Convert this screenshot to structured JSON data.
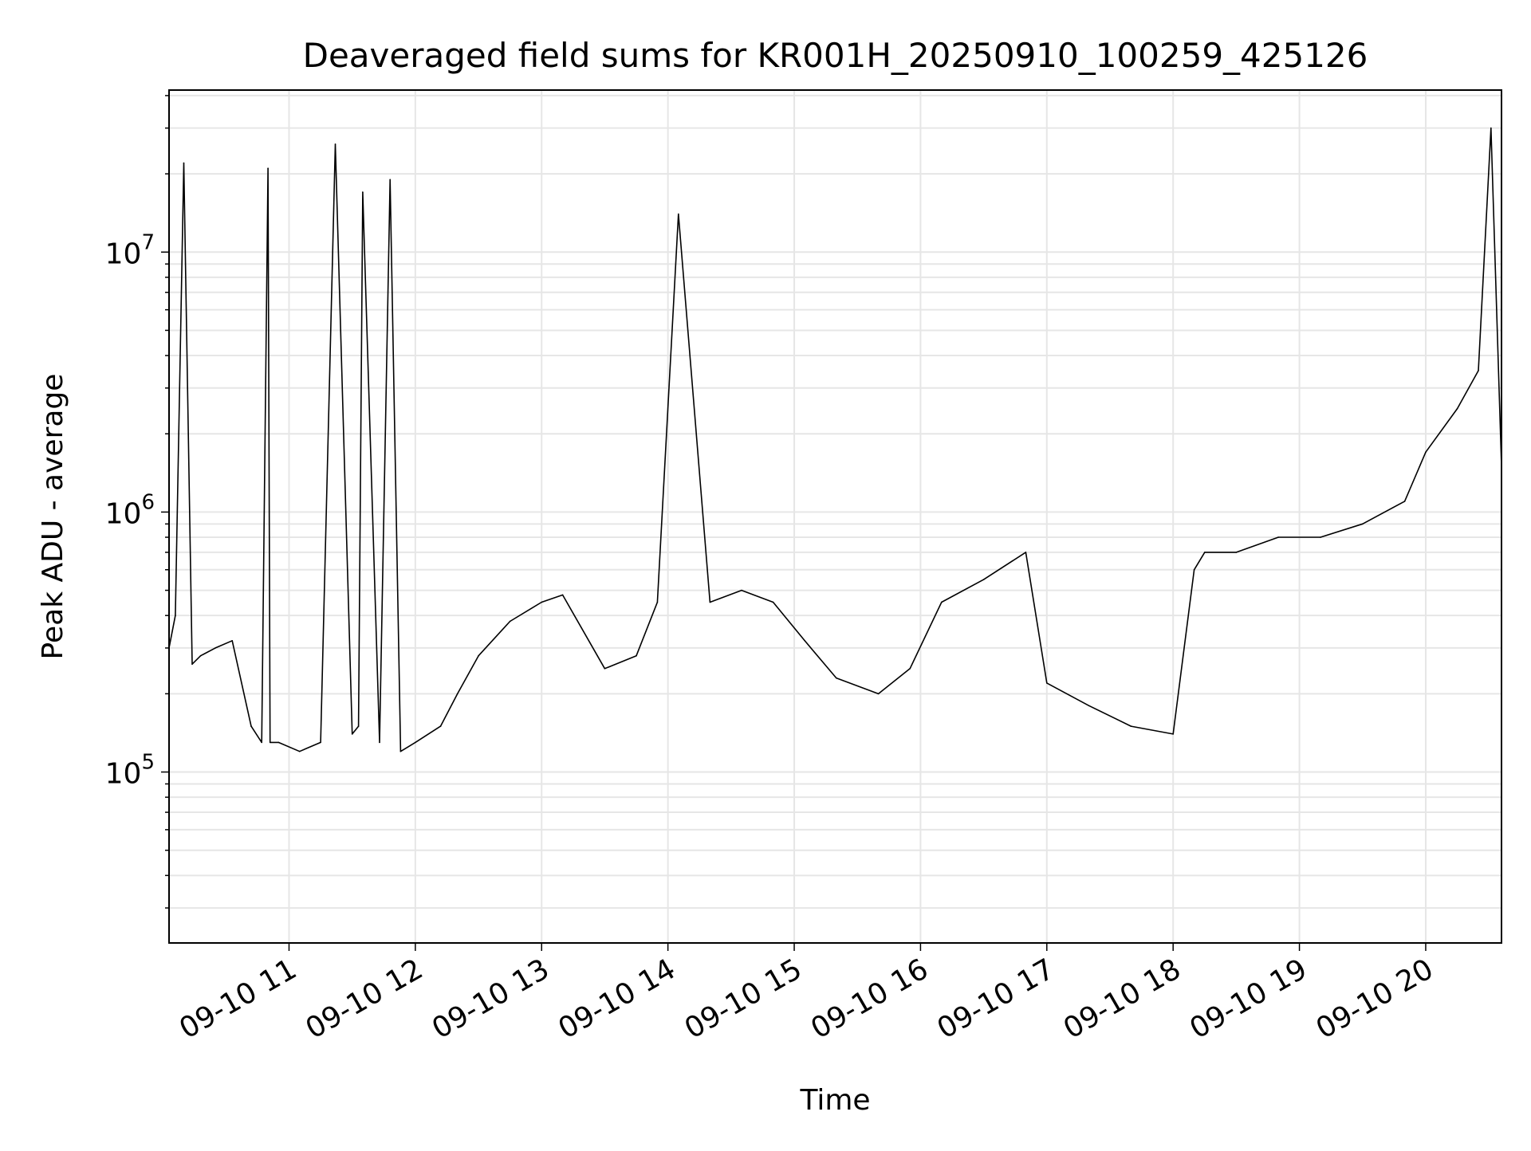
{
  "chart_data": {
    "type": "line",
    "title": "Deaveraged field sums for KR001H_20250910_100259_425126",
    "xlabel": "Time",
    "ylabel": "Peak ADU - average",
    "xlim": [
      "2025-09-10 10:03",
      "2025-09-10 20:36"
    ],
    "ylim": [
      22000,
      42000000
    ],
    "yscale": "log",
    "grid": true,
    "line_color": "#000000",
    "x_ticks": [
      "09-10 11",
      "09-10 12",
      "09-10 13",
      "09-10 14",
      "09-10 15",
      "09-10 16",
      "09-10 17",
      "09-10 18",
      "09-10 19",
      "09-10 20"
    ],
    "y_ticks": [
      {
        "value": 100000,
        "base": "10",
        "exp": "5"
      },
      {
        "value": 1000000,
        "base": "10",
        "exp": "6"
      },
      {
        "value": 10000000,
        "base": "10",
        "exp": "7"
      }
    ],
    "series": [
      {
        "values_note_omitted": false,
        "x": [
          "2025-09-10 10:03",
          "2025-09-10 10:06",
          "2025-09-10 10:10",
          "2025-09-10 10:14",
          "2025-09-10 10:18",
          "2025-09-10 10:25",
          "2025-09-10 10:33",
          "2025-09-10 10:42",
          "2025-09-10 10:47",
          "2025-09-10 10:50",
          "2025-09-10 10:51",
          "2025-09-10 10:55",
          "2025-09-10 11:05",
          "2025-09-10 11:15",
          "2025-09-10 11:22",
          "2025-09-10 11:30",
          "2025-09-10 11:33",
          "2025-09-10 11:35",
          "2025-09-10 11:43",
          "2025-09-10 11:48",
          "2025-09-10 11:53",
          "2025-09-10 12:00",
          "2025-09-10 12:12",
          "2025-09-10 12:20",
          "2025-09-10 12:30",
          "2025-09-10 12:45",
          "2025-09-10 13:00",
          "2025-09-10 13:10",
          "2025-09-10 13:30",
          "2025-09-10 13:45",
          "2025-09-10 13:55",
          "2025-09-10 14:05",
          "2025-09-10 14:20",
          "2025-09-10 14:35",
          "2025-09-10 14:50",
          "2025-09-10 15:05",
          "2025-09-10 15:20",
          "2025-09-10 15:40",
          "2025-09-10 15:55",
          "2025-09-10 16:10",
          "2025-09-10 16:30",
          "2025-09-10 16:50",
          "2025-09-10 17:00",
          "2025-09-10 17:20",
          "2025-09-10 17:40",
          "2025-09-10 18:00",
          "2025-09-10 18:10",
          "2025-09-10 18:15",
          "2025-09-10 18:30",
          "2025-09-10 18:50",
          "2025-09-10 19:10",
          "2025-09-10 19:30",
          "2025-09-10 19:50",
          "2025-09-10 20:00",
          "2025-09-10 20:15",
          "2025-09-10 20:25",
          "2025-09-10 20:31",
          "2025-09-10 20:36"
        ],
        "y": [
          300000,
          400000,
          22000000,
          260000,
          280000,
          300000,
          320000,
          150000,
          130000,
          21000000,
          130000,
          130000,
          120000,
          130000,
          26000000,
          140000,
          150000,
          17000000,
          130000,
          19000000,
          120000,
          130000,
          150000,
          200000,
          280000,
          380000,
          450000,
          480000,
          250000,
          280000,
          450000,
          14000000,
          450000,
          500000,
          450000,
          320000,
          230000,
          200000,
          250000,
          450000,
          550000,
          700000,
          220000,
          180000,
          150000,
          140000,
          600000,
          700000,
          700000,
          800000,
          800000,
          900000,
          1100000,
          1700000,
          2500000,
          3500000,
          30000000,
          1500000
        ]
      }
    ]
  }
}
